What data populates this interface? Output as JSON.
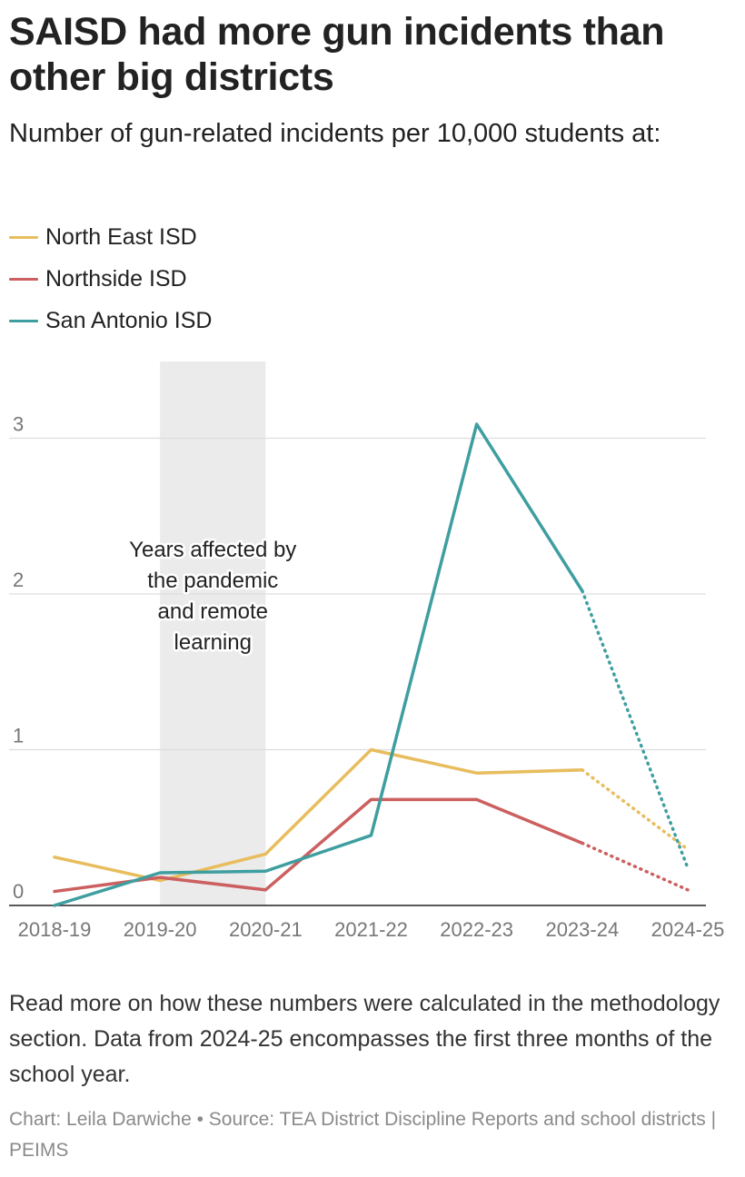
{
  "title": "SAISD had more gun incidents than other big districts",
  "subtitle": "Number of gun-related incidents per 10,000 students at:",
  "legend": [
    {
      "name": "North East ISD",
      "color": "#e8bd5e"
    },
    {
      "name": "Northside ISD",
      "color": "#cc5f5f"
    },
    {
      "name": "San Antonio ISD",
      "color": "#3e9ea0"
    }
  ],
  "note": "Read more on how these numbers were calculated in the methodology section. Data from 2024-25 encompasses the first three months of the school year.",
  "credit": "Chart: Leila Darwiche • Source: TEA District Discipline Reports and school districts | PEIMS",
  "chart_data": {
    "type": "line",
    "title": "SAISD had more gun incidents than other big districts",
    "subtitle": "Number of gun-related incidents per 10,000 students at:",
    "xlabel": "",
    "ylabel": "",
    "categories": [
      "2018-19",
      "2019-20",
      "2020-21",
      "2021-22",
      "2022-23",
      "2023-24",
      "2024-25"
    ],
    "ylim": [
      0,
      3.5
    ],
    "yticks": [
      0,
      1,
      2,
      3
    ],
    "grid": true,
    "legend_position": "top-left",
    "shaded_range": {
      "from": "2019-20",
      "to": "2020-21",
      "label": "Years affected by the pandemic and remote learning",
      "color": "#ebebeb"
    },
    "dotted_from": "2023-24",
    "series": [
      {
        "name": "North East ISD",
        "color": "#e8bd5e",
        "values": [
          0.31,
          0.16,
          0.33,
          1.0,
          0.85,
          0.87,
          0.36
        ]
      },
      {
        "name": "Northside ISD",
        "color": "#cc5f5f",
        "values": [
          0.09,
          0.18,
          0.1,
          0.68,
          0.68,
          0.4,
          0.1
        ]
      },
      {
        "name": "San Antonio ISD",
        "color": "#3e9ea0",
        "values": [
          0.0,
          0.21,
          0.22,
          0.45,
          3.09,
          2.02,
          0.24
        ]
      }
    ]
  }
}
